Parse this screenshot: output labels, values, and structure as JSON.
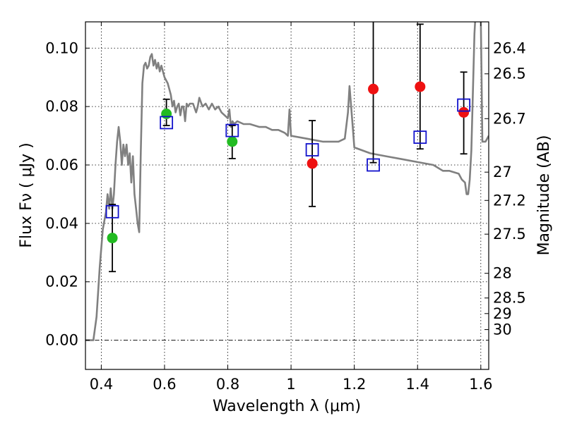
{
  "chart_data": {
    "type": "scatter",
    "xlabel": "Wavelength  λ (μm)",
    "ylabel": "Flux  Fν  ( μJy )",
    "y2label": "Magnitude (AB)",
    "xlim": [
      0.35,
      1.625
    ],
    "ylim": [
      -0.01,
      0.109
    ],
    "grid": true,
    "x_ticks": [
      {
        "value": 0.4,
        "label": "0.4"
      },
      {
        "value": 0.6,
        "label": "0.6"
      },
      {
        "value": 0.8,
        "label": "0.8"
      },
      {
        "value": 1.0,
        "label": "1"
      },
      {
        "value": 1.2,
        "label": "1.2"
      },
      {
        "value": 1.4,
        "label": "1.4"
      },
      {
        "value": 1.6,
        "label": "1.6"
      }
    ],
    "y_ticks": [
      {
        "value": 0.0,
        "label": "0.00"
      },
      {
        "value": 0.02,
        "label": "0.02"
      },
      {
        "value": 0.04,
        "label": "0.04"
      },
      {
        "value": 0.06,
        "label": "0.06"
      },
      {
        "value": 0.08,
        "label": "0.08"
      },
      {
        "value": 0.1,
        "label": "0.10"
      }
    ],
    "mag_ticks": [
      {
        "value": 26.4,
        "label": "26.4"
      },
      {
        "value": 26.5,
        "label": "26.5"
      },
      {
        "value": 26.7,
        "label": "26.7"
      },
      {
        "value": 27.0,
        "label": "27"
      },
      {
        "value": 27.2,
        "label": "27.2"
      },
      {
        "value": 27.5,
        "label": "27.5"
      },
      {
        "value": 28.0,
        "label": "28"
      },
      {
        "value": 28.5,
        "label": "28.5"
      },
      {
        "value": 29.0,
        "label": "29"
      },
      {
        "value": 30.0,
        "label": "30"
      }
    ],
    "model_spectrum": {
      "color": "#808080",
      "points": [
        [
          0.35,
          0.0
        ],
        [
          0.375,
          0.0
        ],
        [
          0.385,
          0.008
        ],
        [
          0.395,
          0.025
        ],
        [
          0.405,
          0.038
        ],
        [
          0.415,
          0.044
        ],
        [
          0.42,
          0.05
        ],
        [
          0.425,
          0.045
        ],
        [
          0.43,
          0.052
        ],
        [
          0.435,
          0.045
        ],
        [
          0.44,
          0.05
        ],
        [
          0.445,
          0.06
        ],
        [
          0.45,
          0.068
        ],
        [
          0.455,
          0.073
        ],
        [
          0.46,
          0.068
        ],
        [
          0.465,
          0.06
        ],
        [
          0.47,
          0.067
        ],
        [
          0.475,
          0.063
        ],
        [
          0.48,
          0.067
        ],
        [
          0.485,
          0.06
        ],
        [
          0.49,
          0.064
        ],
        [
          0.495,
          0.054
        ],
        [
          0.5,
          0.063
        ],
        [
          0.505,
          0.05
        ],
        [
          0.51,
          0.045
        ],
        [
          0.515,
          0.04
        ],
        [
          0.52,
          0.037
        ],
        [
          0.525,
          0.065
        ],
        [
          0.53,
          0.088
        ],
        [
          0.535,
          0.094
        ],
        [
          0.54,
          0.095
        ],
        [
          0.545,
          0.093
        ],
        [
          0.55,
          0.094
        ],
        [
          0.555,
          0.097
        ],
        [
          0.56,
          0.098
        ],
        [
          0.565,
          0.094
        ],
        [
          0.57,
          0.096
        ],
        [
          0.575,
          0.093
        ],
        [
          0.58,
          0.095
        ],
        [
          0.585,
          0.092
        ],
        [
          0.59,
          0.094
        ],
        [
          0.595,
          0.092
        ],
        [
          0.6,
          0.09
        ],
        [
          0.605,
          0.089
        ],
        [
          0.61,
          0.088
        ],
        [
          0.615,
          0.086
        ],
        [
          0.62,
          0.084
        ],
        [
          0.625,
          0.08
        ],
        [
          0.63,
          0.082
        ],
        [
          0.635,
          0.078
        ],
        [
          0.64,
          0.08
        ],
        [
          0.645,
          0.081
        ],
        [
          0.65,
          0.077
        ],
        [
          0.655,
          0.08
        ],
        [
          0.66,
          0.08
        ],
        [
          0.665,
          0.075
        ],
        [
          0.67,
          0.081
        ],
        [
          0.675,
          0.08
        ],
        [
          0.68,
          0.081
        ],
        [
          0.69,
          0.081
        ],
        [
          0.7,
          0.078
        ],
        [
          0.705,
          0.08
        ],
        [
          0.71,
          0.083
        ],
        [
          0.72,
          0.08
        ],
        [
          0.73,
          0.081
        ],
        [
          0.74,
          0.079
        ],
        [
          0.75,
          0.081
        ],
        [
          0.76,
          0.079
        ],
        [
          0.77,
          0.08
        ],
        [
          0.78,
          0.078
        ],
        [
          0.79,
          0.077
        ],
        [
          0.8,
          0.076
        ],
        [
          0.805,
          0.079
        ],
        [
          0.81,
          0.073
        ],
        [
          0.815,
          0.075
        ],
        [
          0.82,
          0.074
        ],
        [
          0.83,
          0.075
        ],
        [
          0.85,
          0.074
        ],
        [
          0.87,
          0.074
        ],
        [
          0.9,
          0.073
        ],
        [
          0.92,
          0.073
        ],
        [
          0.94,
          0.072
        ],
        [
          0.96,
          0.072
        ],
        [
          0.98,
          0.071
        ],
        [
          0.99,
          0.07
        ],
        [
          0.995,
          0.079
        ],
        [
          1.0,
          0.07
        ],
        [
          1.05,
          0.069
        ],
        [
          1.1,
          0.068
        ],
        [
          1.15,
          0.068
        ],
        [
          1.17,
          0.069
        ],
        [
          1.18,
          0.078
        ],
        [
          1.185,
          0.087
        ],
        [
          1.19,
          0.08
        ],
        [
          1.2,
          0.066
        ],
        [
          1.25,
          0.064
        ],
        [
          1.3,
          0.063
        ],
        [
          1.35,
          0.062
        ],
        [
          1.4,
          0.061
        ],
        [
          1.45,
          0.06
        ],
        [
          1.48,
          0.058
        ],
        [
          1.5,
          0.058
        ],
        [
          1.53,
          0.057
        ],
        [
          1.54,
          0.055
        ],
        [
          1.55,
          0.054
        ],
        [
          1.555,
          0.05
        ],
        [
          1.56,
          0.05
        ],
        [
          1.565,
          0.055
        ],
        [
          1.57,
          0.065
        ],
        [
          1.575,
          0.085
        ],
        [
          1.58,
          0.105
        ],
        [
          1.585,
          0.115
        ],
        [
          1.595,
          0.115
        ],
        [
          1.6,
          0.11
        ],
        [
          1.605,
          0.068
        ],
        [
          1.615,
          0.068
        ],
        [
          1.625,
          0.07
        ]
      ]
    },
    "series": [
      {
        "marker": "circle",
        "color": "#22bb22",
        "points": [
          {
            "x": 0.435,
            "y": 0.035
          },
          {
            "x": 0.606,
            "y": 0.0775
          },
          {
            "x": 0.814,
            "y": 0.068
          }
        ]
      },
      {
        "marker": "circle",
        "color": "#ee1111",
        "points": [
          {
            "x": 1.067,
            "y": 0.0605
          },
          {
            "x": 1.26,
            "y": 0.086
          },
          {
            "x": 1.408,
            "y": 0.0868
          },
          {
            "x": 1.546,
            "y": 0.078
          }
        ]
      },
      {
        "marker": "square",
        "color": "#1111cc",
        "points": [
          {
            "x": 0.435,
            "y": 0.044
          },
          {
            "x": 0.606,
            "y": 0.0745
          },
          {
            "x": 0.814,
            "y": 0.0718
          },
          {
            "x": 1.067,
            "y": 0.0652
          },
          {
            "x": 1.26,
            "y": 0.06
          },
          {
            "x": 1.408,
            "y": 0.0695
          },
          {
            "x": 1.546,
            "y": 0.0805
          }
        ]
      }
    ],
    "error_bars": [
      {
        "x": 0.435,
        "low": 0.0235,
        "high": 0.0465
      },
      {
        "x": 0.606,
        "low": 0.0735,
        "high": 0.0825
      },
      {
        "x": 0.814,
        "low": 0.0622,
        "high": 0.0735
      },
      {
        "x": 1.067,
        "low": 0.0458,
        "high": 0.0752
      },
      {
        "x": 1.26,
        "low": 0.0608,
        "high": 0.1095
      },
      {
        "x": 1.408,
        "low": 0.0655,
        "high": 0.1082
      },
      {
        "x": 1.546,
        "low": 0.0638,
        "high": 0.0918
      }
    ]
  }
}
